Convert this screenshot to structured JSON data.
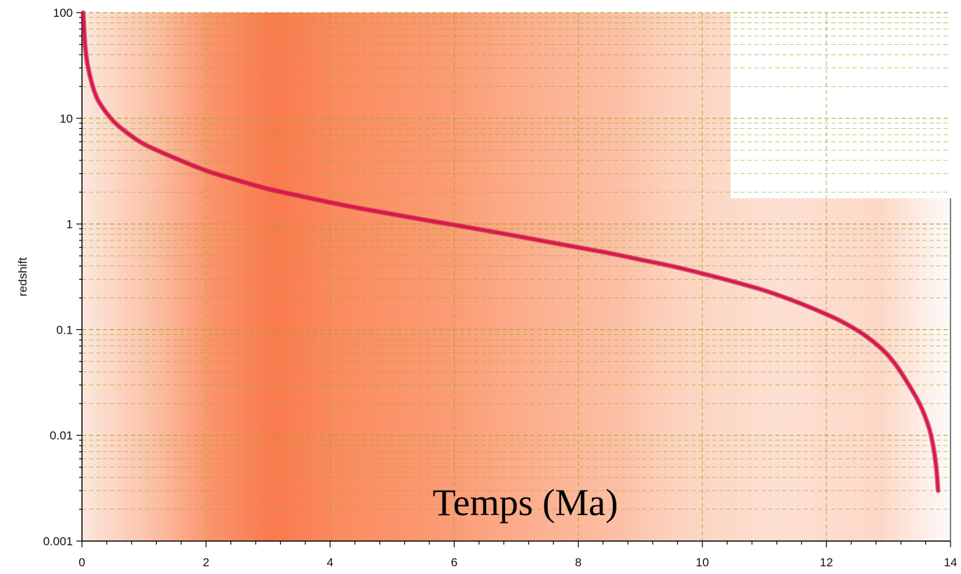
{
  "chart_data": {
    "type": "line",
    "title": "",
    "xlabel": "Temps (Ma)",
    "ylabel": "redshift",
    "xscale": "linear",
    "yscale": "log",
    "xlim": [
      0,
      14
    ],
    "ylim": [
      0.001,
      100
    ],
    "x_ticks": [
      "0",
      "2",
      "4",
      "6",
      "8",
      "10",
      "12",
      "14"
    ],
    "y_ticks": [
      "0.001",
      "0.01",
      "0.1",
      "1",
      "10",
      "100"
    ],
    "grid": "dashed, major and minor",
    "series": [
      {
        "color": "#e0144c",
        "points": [
          [
            0.02,
            100
          ],
          [
            0.05,
            50
          ],
          [
            0.1,
            30
          ],
          [
            0.2,
            18
          ],
          [
            0.3,
            13.5
          ],
          [
            0.5,
            9.5
          ],
          [
            0.7,
            7.5
          ],
          [
            1.0,
            5.7
          ],
          [
            1.5,
            4.2
          ],
          [
            2.0,
            3.2
          ],
          [
            2.5,
            2.6
          ],
          [
            3.0,
            2.15
          ],
          [
            3.5,
            1.85
          ],
          [
            4.0,
            1.6
          ],
          [
            4.5,
            1.4
          ],
          [
            5.0,
            1.24
          ],
          [
            5.5,
            1.1
          ],
          [
            6.0,
            0.98
          ],
          [
            6.5,
            0.87
          ],
          [
            7.0,
            0.77
          ],
          [
            7.5,
            0.68
          ],
          [
            8.0,
            0.6
          ],
          [
            8.5,
            0.53
          ],
          [
            9.0,
            0.46
          ],
          [
            9.5,
            0.4
          ],
          [
            10.0,
            0.34
          ],
          [
            10.5,
            0.285
          ],
          [
            11.0,
            0.235
          ],
          [
            11.5,
            0.185
          ],
          [
            12.0,
            0.14
          ],
          [
            12.3,
            0.115
          ],
          [
            12.6,
            0.09
          ],
          [
            12.9,
            0.065
          ],
          [
            13.1,
            0.048
          ],
          [
            13.3,
            0.032
          ],
          [
            13.5,
            0.02
          ],
          [
            13.65,
            0.012
          ],
          [
            13.72,
            0.008
          ],
          [
            13.77,
            0.005
          ],
          [
            13.8,
            0.003
          ]
        ]
      }
    ]
  }
}
